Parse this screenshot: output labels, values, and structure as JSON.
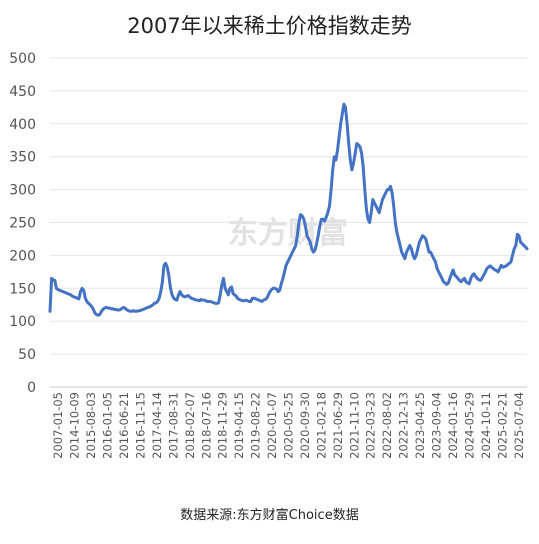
{
  "chart_data": {
    "type": "line",
    "title": "2007年以来稀土价格指数走势",
    "source": "数据来源:东方财富Choice数据",
    "watermark": "东方财富",
    "color": "#4472c4",
    "ylim": [
      0,
      500
    ],
    "y_ticks": [
      0,
      50,
      100,
      150,
      200,
      250,
      300,
      350,
      400,
      450,
      500
    ],
    "x_ticks": [
      "2007-01-05",
      "2014-10-09",
      "2015-08-03",
      "2016-01-05",
      "2016-06-21",
      "2016-11-15",
      "2017-04-14",
      "2017-08-31",
      "2018-02-07",
      "2018-07-16",
      "2018-11-29",
      "2019-04-15",
      "2019-08-22",
      "2020-01-07",
      "2020-05-25",
      "2020-09-30",
      "2021-02-18",
      "2021-06-29",
      "2021-11-10",
      "2022-03-23",
      "2022-08-02",
      "2022-12-13",
      "2023-04-25",
      "2023-09-04",
      "2024-01-16",
      "2024-05-29",
      "2024-10-11",
      "2025-02-21",
      "2025-07-04"
    ],
    "series": [
      {
        "values": [
          115,
          165,
          163,
          162,
          150,
          148,
          147,
          146,
          145,
          144,
          143,
          142,
          141,
          140,
          138,
          137,
          136,
          135,
          134,
          145,
          150,
          147,
          135,
          130,
          127,
          125,
          122,
          118,
          112,
          110,
          109,
          110,
          115,
          118,
          120,
          121,
          120,
          120,
          119,
          119,
          118,
          118,
          117,
          117,
          118,
          120,
          121,
          119,
          117,
          116,
          115,
          115,
          116,
          115,
          115,
          116,
          116,
          117,
          118,
          119,
          120,
          121,
          122,
          123,
          125,
          127,
          128,
          130,
          135,
          145,
          160,
          185,
          188,
          182,
          170,
          150,
          140,
          135,
          133,
          132,
          140,
          145,
          140,
          138,
          137,
          138,
          139,
          137,
          135,
          134,
          133,
          132,
          132,
          131,
          133,
          132,
          132,
          131,
          130,
          130,
          130,
          129,
          128,
          127,
          127,
          128,
          140,
          155,
          165,
          150,
          145,
          140,
          150,
          152,
          142,
          140,
          138,
          134,
          133,
          132,
          131,
          131,
          132,
          131,
          130,
          130,
          135,
          135,
          134,
          133,
          132,
          131,
          130,
          132,
          133,
          135,
          140,
          145,
          148,
          150,
          150,
          149,
          145,
          147,
          157,
          165,
          175,
          185,
          190,
          195,
          200,
          205,
          210,
          215,
          230,
          250,
          262,
          260,
          255,
          245,
          230,
          225,
          220,
          210,
          205,
          208,
          218,
          230,
          245,
          255,
          255,
          252,
          258,
          265,
          275,
          300,
          330,
          350,
          345,
          360,
          380,
          400,
          415,
          430,
          425,
          400,
          370,
          345,
          330,
          340,
          355,
          370,
          368,
          365,
          355,
          335,
          300,
          270,
          255,
          250,
          265,
          285,
          280,
          275,
          270,
          265,
          275,
          285,
          290,
          295,
          300,
          300,
          305,
          295,
          275,
          250,
          235,
          225,
          215,
          205,
          200,
          195,
          205,
          210,
          215,
          210,
          200,
          195,
          200,
          210,
          220,
          225,
          230,
          228,
          225,
          215,
          205,
          205,
          200,
          195,
          190,
          180,
          175,
          170,
          165,
          160,
          158,
          156,
          158,
          165,
          172,
          178,
          170,
          168,
          165,
          162,
          160,
          163,
          165,
          160,
          158,
          157,
          165,
          170,
          172,
          168,
          165,
          163,
          162,
          165,
          170,
          174,
          180,
          182,
          184,
          182,
          180,
          178,
          177,
          175,
          180,
          185,
          182,
          183,
          184,
          186,
          188,
          190,
          200,
          210,
          215,
          232,
          230,
          220,
          218,
          215,
          213,
          210
        ]
      }
    ]
  }
}
